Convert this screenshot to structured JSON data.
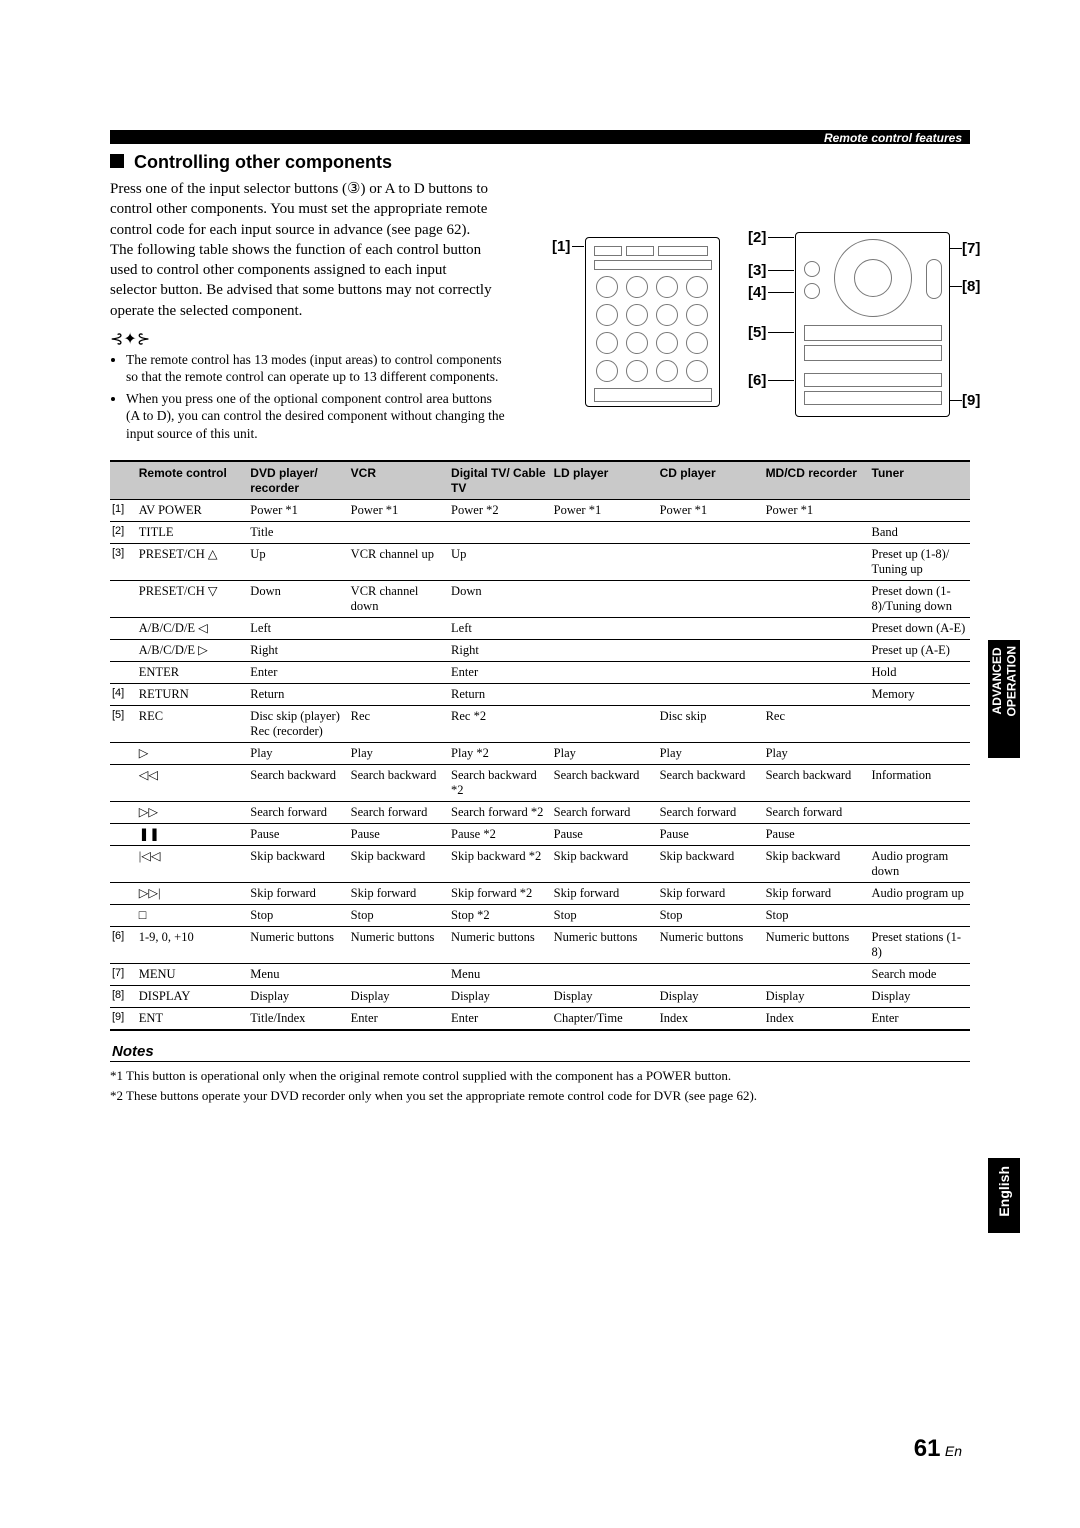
{
  "header_label": "Remote control features",
  "section_title": "Controlling other components",
  "intro": "Press one of the input selector buttons (③) or A to D buttons to control other components. You must set the appropriate remote control code for each input source in advance (see page 62). The following table shows the function of each control button used to control other components assigned to each input selector button. Be advised that some buttons may not correctly operate the selected component.",
  "tips": [
    "The remote control has 13 modes (input areas) to control components so that the remote control can operate up to 13 different components.",
    "When you press one of the optional component control area buttons (A to D), you can control the desired component without changing the input source of this unit."
  ],
  "callouts": {
    "c1": "[1]",
    "c2": "[2]",
    "c3": "[3]",
    "c4": "[4]",
    "c5": "[5]",
    "c6": "[6]",
    "c7": "[7]",
    "c8": "[8]",
    "c9": "[9]"
  },
  "table": {
    "headers": [
      "",
      "Remote control",
      "DVD player/ recorder",
      "VCR",
      "Digital TV/ Cable TV",
      "LD player",
      "CD player",
      "MD/CD recorder",
      "Tuner"
    ],
    "col_widths": [
      "24px",
      "100px",
      "90px",
      "90px",
      "92px",
      "95px",
      "95px",
      "95px",
      "90px"
    ],
    "rows": [
      {
        "num": "[1]",
        "rc": "AV POWER",
        "cells": [
          "Power *1",
          "Power *1",
          "Power *2",
          "Power *1",
          "Power *1",
          "Power *1",
          ""
        ]
      },
      {
        "num": "[2]",
        "rc": "TITLE",
        "cells": [
          "Title",
          "",
          "",
          "",
          "",
          "",
          "Band"
        ]
      },
      {
        "num": "[3]",
        "rc": "PRESET/CH △",
        "cells": [
          "Up",
          "VCR channel up",
          "Up",
          "",
          "",
          "",
          "Preset up (1-8)/ Tuning up"
        ]
      },
      {
        "num": "",
        "rc": "PRESET/CH ▽",
        "cells": [
          "Down",
          "VCR channel down",
          "Down",
          "",
          "",
          "",
          "Preset down (1-8)/Tuning down"
        ]
      },
      {
        "num": "",
        "rc": "A/B/C/D/E ◁",
        "cells": [
          "Left",
          "",
          "Left",
          "",
          "",
          "",
          "Preset down (A-E)"
        ]
      },
      {
        "num": "",
        "rc": "A/B/C/D/E ▷",
        "cells": [
          "Right",
          "",
          "Right",
          "",
          "",
          "",
          "Preset up (A-E)"
        ]
      },
      {
        "num": "",
        "rc": "ENTER",
        "cells": [
          "Enter",
          "",
          "Enter",
          "",
          "",
          "",
          "Hold"
        ]
      },
      {
        "num": "[4]",
        "rc": "RETURN",
        "cells": [
          "Return",
          "",
          "Return",
          "",
          "",
          "",
          "Memory"
        ]
      },
      {
        "num": "[5]",
        "rc": "REC",
        "cells": [
          "Disc skip (player) Rec (recorder)",
          "Rec",
          "Rec *2",
          "",
          "Disc skip",
          "Rec",
          ""
        ]
      },
      {
        "num": "",
        "rc": "▷",
        "cells": [
          "Play",
          "Play",
          "Play *2",
          "Play",
          "Play",
          "Play",
          ""
        ]
      },
      {
        "num": "",
        "rc": "◁◁",
        "cells": [
          "Search backward",
          "Search backward",
          "Search backward *2",
          "Search backward",
          "Search backward",
          "Search backward",
          "Information"
        ]
      },
      {
        "num": "",
        "rc": "▷▷",
        "cells": [
          "Search forward",
          "Search forward",
          "Search forward *2",
          "Search forward",
          "Search forward",
          "Search forward",
          ""
        ]
      },
      {
        "num": "",
        "rc": "❚❚",
        "cells": [
          "Pause",
          "Pause",
          "Pause *2",
          "Pause",
          "Pause",
          "Pause",
          ""
        ]
      },
      {
        "num": "",
        "rc": "|◁◁",
        "cells": [
          "Skip backward",
          "Skip backward",
          "Skip backward *2",
          "Skip backward",
          "Skip backward",
          "Skip backward",
          "Audio program down"
        ]
      },
      {
        "num": "",
        "rc": "▷▷|",
        "cells": [
          "Skip forward",
          "Skip forward",
          "Skip forward *2",
          "Skip forward",
          "Skip forward",
          "Skip forward",
          "Audio program up"
        ]
      },
      {
        "num": "",
        "rc": "□",
        "cells": [
          "Stop",
          "Stop",
          "Stop *2",
          "Stop",
          "Stop",
          "Stop",
          ""
        ]
      },
      {
        "num": "[6]",
        "rc": "1-9, 0, +10",
        "cells": [
          "Numeric buttons",
          "Numeric buttons",
          "Numeric buttons",
          "Numeric buttons",
          "Numeric buttons",
          "Numeric buttons",
          "Preset stations (1-8)"
        ]
      },
      {
        "num": "[7]",
        "rc": "MENU",
        "cells": [
          "Menu",
          "",
          "Menu",
          "",
          "",
          "",
          "Search mode"
        ]
      },
      {
        "num": "[8]",
        "rc": "DISPLAY",
        "cells": [
          "Display",
          "Display",
          "Display",
          "Display",
          "Display",
          "Display",
          "Display"
        ]
      },
      {
        "num": "[9]",
        "rc": "ENT",
        "cells": [
          "Title/Index",
          "Enter",
          "Enter",
          "Chapter/Time",
          "Index",
          "Index",
          "Enter"
        ]
      }
    ]
  },
  "notes_heading": "Notes",
  "notes": [
    "*1 This button is operational only when the original remote control supplied with the component has a POWER button.",
    "*2 These buttons operate your DVD recorder only when you set the appropriate remote control code for DVR (see page 62)."
  ],
  "side_tab_1_line1": "ADVANCED",
  "side_tab_1_line2": "OPERATION",
  "side_tab_2": "English",
  "page_number": "61",
  "page_lang": "En",
  "colors": {
    "band": "#000000",
    "header_bg": "#c9c9c9"
  }
}
